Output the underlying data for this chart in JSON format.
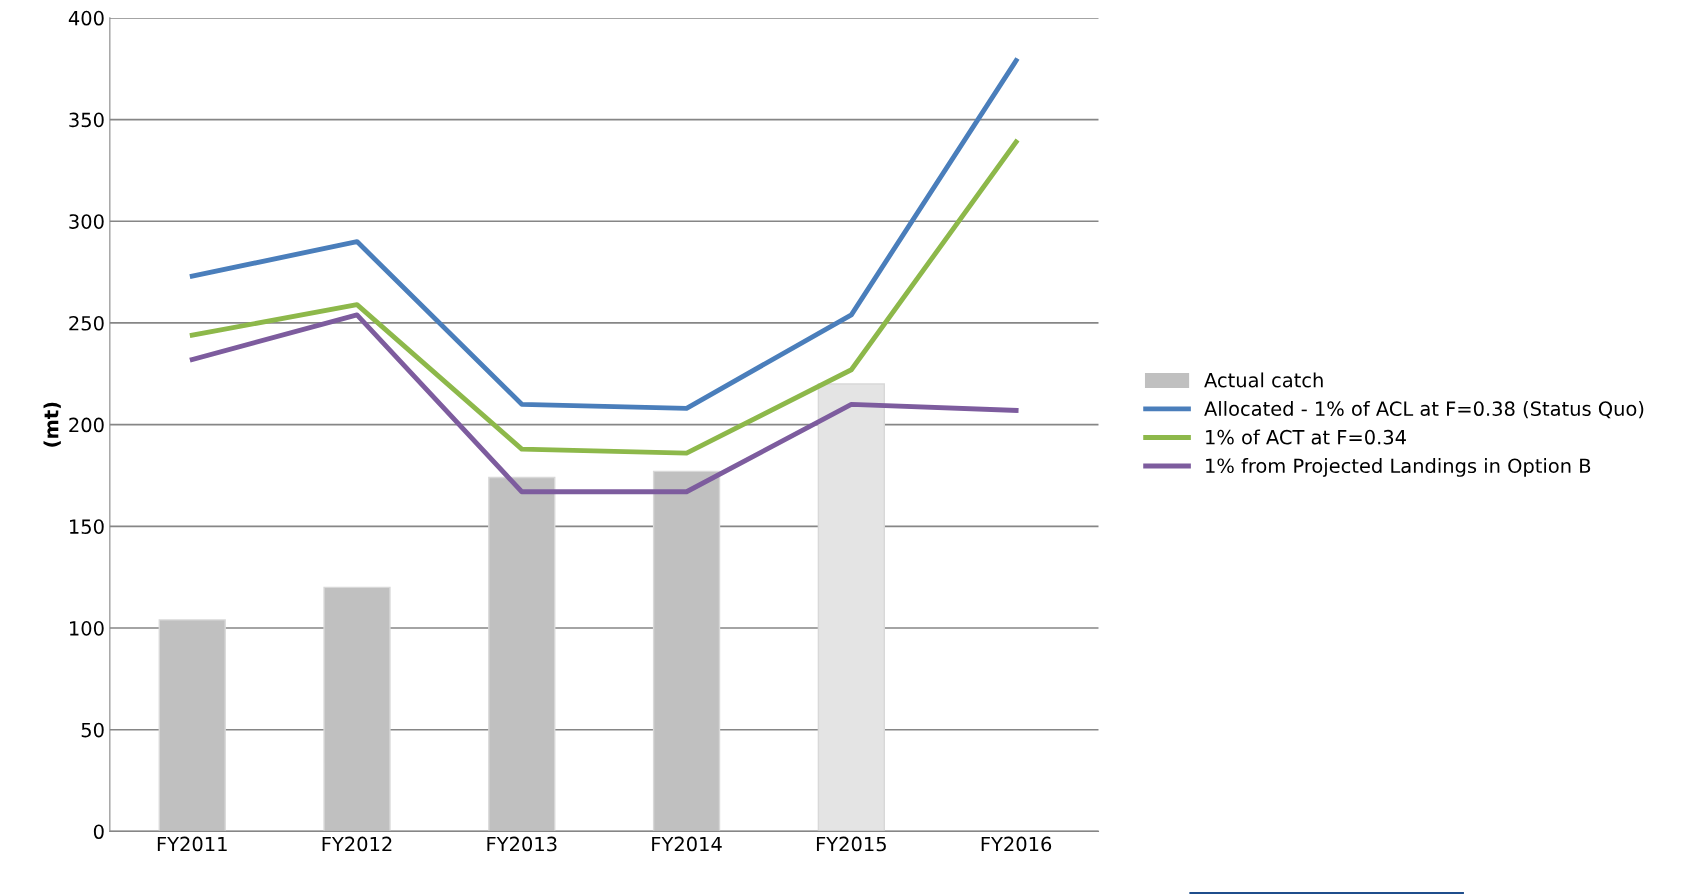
{
  "chart_data": {
    "type": "bar",
    "ylabel": "(mt)",
    "categories": [
      "FY2011",
      "FY2012",
      "FY2013",
      "FY2014",
      "FY2015",
      "FY2016"
    ],
    "series": [
      {
        "name": "Actual catch",
        "color": "#c0c0c0",
        "colors": [
          "#c0c0c0",
          "#c0c0c0",
          "#c0c0c0",
          "#c0c0c0",
          "#e4e4e4",
          "#c0c0c0"
        ],
        "values": [
          104,
          120,
          174,
          177,
          220,
          null
        ]
      },
      {
        "name": "Allocated - 1% of ACL at F=0.38 (Status Quo)",
        "type": "line",
        "color": "#4a7ebb",
        "values": [
          273,
          290,
          210,
          208,
          254,
          379
        ]
      },
      {
        "name": "1% of ACT at F=0.34",
        "type": "line",
        "color": "#8db84a",
        "values": [
          244,
          259,
          188,
          186,
          227,
          339
        ]
      },
      {
        "name": "1% from Projected Landings in Option B",
        "type": "line",
        "color": "#7d5c9e",
        "values": [
          232,
          254,
          167,
          167,
          210,
          207
        ]
      }
    ],
    "ylim": [
      0,
      400
    ],
    "yticks": [
      0,
      50,
      100,
      150,
      200,
      250,
      300,
      350,
      400
    ],
    "grid": "y",
    "legend": "right",
    "marker": "none",
    "line_style": "solid"
  }
}
